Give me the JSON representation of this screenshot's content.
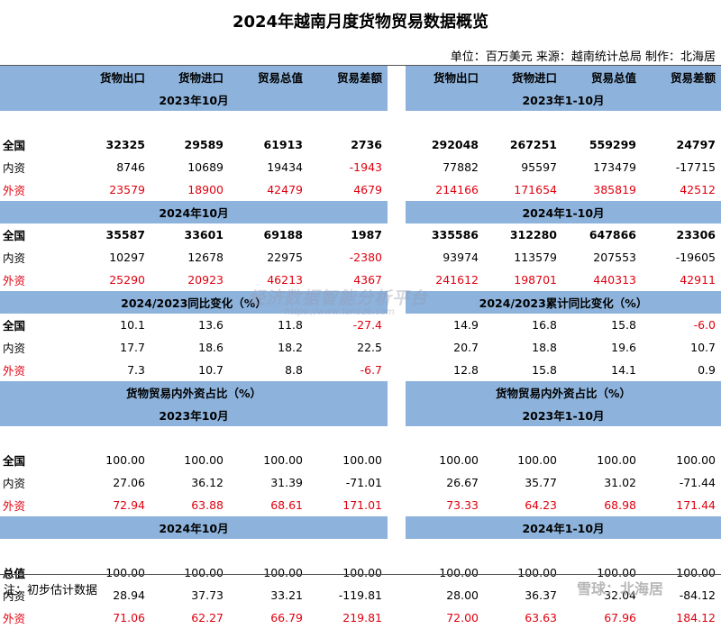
{
  "title": "2024年越南月度货物贸易数据概览",
  "unit_line": "单位：百万美元 来源：越南统计总局 制作：北海居",
  "columns": [
    "货物出口",
    "货物进口",
    "贸易总值",
    "贸易差额"
  ],
  "blocks": [
    {
      "type": "header"
    },
    {
      "type": "section",
      "left": "2023年10月",
      "right": "2023年1-10月"
    },
    {
      "type": "blank"
    },
    {
      "type": "row",
      "style": "bold",
      "label": "全国",
      "values": [
        "32325",
        "29589",
        "61913",
        "2736",
        "292048",
        "267251",
        "559299",
        "24797"
      ]
    },
    {
      "type": "row",
      "style": "normal",
      "label": "内资",
      "values": [
        "8746",
        "10689",
        "19434",
        "-1943",
        "77882",
        "95597",
        "173479",
        "-17715"
      ],
      "red": [
        3
      ]
    },
    {
      "type": "row",
      "style": "red",
      "label": "外资",
      "values": [
        "23579",
        "18900",
        "42479",
        "4679",
        "214166",
        "171654",
        "385819",
        "42512"
      ]
    },
    {
      "type": "section",
      "left": "2024年10月",
      "right": "2024年1-10月"
    },
    {
      "type": "row",
      "style": "bold",
      "label": "全国",
      "values": [
        "35587",
        "33601",
        "69188",
        "1987",
        "335586",
        "312280",
        "647866",
        "23306"
      ]
    },
    {
      "type": "row",
      "style": "normal",
      "label": "内资",
      "values": [
        "10297",
        "12678",
        "22975",
        "-2380",
        "93974",
        "113579",
        "207553",
        "-19605"
      ],
      "red": [
        3
      ]
    },
    {
      "type": "row",
      "style": "red",
      "label": "外资",
      "values": [
        "25290",
        "20923",
        "46213",
        "4367",
        "241612",
        "198701",
        "440313",
        "42911"
      ]
    },
    {
      "type": "section",
      "left": "2024/2023同比变化（%）",
      "right": "2024/2023累计同比变化（%）"
    },
    {
      "type": "row",
      "style": "normal",
      "label": "全国",
      "labelBold": true,
      "values": [
        "10.1",
        "13.6",
        "11.8",
        "-27.4",
        "14.9",
        "16.8",
        "15.8",
        "-6.0"
      ],
      "red": [
        3,
        7
      ]
    },
    {
      "type": "row",
      "style": "normal",
      "label": "内资",
      "values": [
        "17.7",
        "18.6",
        "18.2",
        "22.5",
        "20.7",
        "18.8",
        "19.6",
        "10.7"
      ]
    },
    {
      "type": "row",
      "style": "red",
      "label": "外资",
      "values": [
        "7.3",
        "10.7",
        "8.8",
        "-6.7",
        "12.8",
        "15.8",
        "14.1",
        "0.9"
      ],
      "black": [
        0,
        1,
        2,
        4,
        5,
        6,
        7
      ]
    },
    {
      "type": "section",
      "left": "货物贸易内外资占比（%）",
      "right": "货物贸易内外资占比（%）"
    },
    {
      "type": "section",
      "left": "2023年10月",
      "right": "2023年1-10月"
    },
    {
      "type": "blank"
    },
    {
      "type": "row",
      "style": "normal",
      "label": "全国",
      "labelBold": true,
      "values": [
        "100.00",
        "100.00",
        "100.00",
        "100.00",
        "100.00",
        "100.00",
        "100.00",
        "100.00"
      ]
    },
    {
      "type": "row",
      "style": "normal",
      "label": "内资",
      "values": [
        "27.06",
        "36.12",
        "31.39",
        "-71.01",
        "26.67",
        "35.77",
        "31.02",
        "-71.44"
      ]
    },
    {
      "type": "row",
      "style": "red",
      "label": "外资",
      "values": [
        "72.94",
        "63.88",
        "68.61",
        "171.01",
        "73.33",
        "64.23",
        "68.98",
        "171.44"
      ]
    },
    {
      "type": "section",
      "left": "2024年10月",
      "right": "2024年1-10月"
    },
    {
      "type": "blank"
    },
    {
      "type": "row",
      "style": "normal",
      "label": "总值",
      "labelBold": true,
      "values": [
        "100.00",
        "100.00",
        "100.00",
        "100.00",
        "100.00",
        "100.00",
        "100.00",
        "100.00"
      ]
    },
    {
      "type": "row",
      "style": "normal",
      "label": "内资",
      "values": [
        "28.94",
        "37.73",
        "33.21",
        "-119.81",
        "28.00",
        "36.37",
        "32.04",
        "-84.12"
      ]
    },
    {
      "type": "row",
      "style": "red",
      "label": "外资",
      "values": [
        "71.06",
        "62.27",
        "66.79",
        "219.81",
        "72.00",
        "63.63",
        "67.96",
        "184.12"
      ]
    }
  ],
  "note": "注：初步估计数据",
  "watermark": {
    "main": "经济数据智能分析平台",
    "url": "https://www.tonsdb.com",
    "xueqiu": "雪球：北海居"
  },
  "colors": {
    "header_blue": "#8DB3DC",
    "red": "#e0000f"
  }
}
